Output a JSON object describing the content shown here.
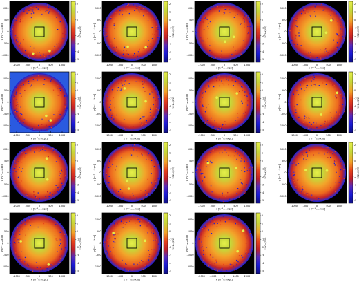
{
  "chart_data": {
    "type": "heatmap",
    "layout": {
      "rows": 4,
      "cols": 4,
      "panel_count": 15
    },
    "colorbar": {
      "label": "Log₁₀(ρ/ρ̄)",
      "tick_labels": [
        "2",
        "1",
        "0",
        "-1",
        "-2",
        "-3",
        "-4",
        "-5"
      ],
      "colors": [
        "#000000",
        "#1a1ad6",
        "#5a2ab8",
        "#c0202a",
        "#e8451c",
        "#f2a52a",
        "#c6d63a",
        "#e6f04a"
      ]
    },
    "panels": [
      {
        "xlabel": "x [h⁻¹ₘₑₛₕkpc]",
        "ylabel": "y [h⁻¹ₘₑₛₕkpc]",
        "xticks": [
          "-1000",
          "-500",
          "0",
          "500",
          "1000"
        ],
        "yticks": [
          "1000",
          "500",
          "0",
          "-500",
          "-1000"
        ],
        "background": "#000000"
      },
      {
        "xlabel": "x [h⁻¹ₘₑₛₕkpc]",
        "ylabel": "y [h⁻¹ₘₑₛₕkpc]",
        "xticks": [
          "-1000",
          "-500",
          "0",
          "500",
          "1000"
        ],
        "yticks": [
          "1000",
          "500",
          "0",
          "-500",
          "-1000"
        ],
        "background": "#000000"
      },
      {
        "xlabel": "x [h⁻¹ₘₑₛₕkpc]",
        "ylabel": "y [h⁻¹ₘₑₛₕkpc]",
        "xticks": [
          "-1000",
          "-500",
          "0",
          "500",
          "1000"
        ],
        "yticks": [
          "1000",
          "500",
          "0",
          "-500",
          "-1000"
        ],
        "background": "#000000"
      },
      {
        "xlabel": "x [h⁻¹ₘₑₛₕkpc]",
        "ylabel": "y [h⁻¹ₘₑₛₕkpc]",
        "xticks": [
          "-1000",
          "-500",
          "0",
          "500",
          "1000"
        ],
        "yticks": [
          "1000",
          "500",
          "0",
          "-500",
          "-1000"
        ],
        "background": "#000000"
      },
      {
        "xlabel": "x [h⁻¹ₘₑₛₕkpc]",
        "ylabel": "y [h⁻¹ₘₑₛₕkpc]",
        "xticks": [
          "-1000",
          "-500",
          "0",
          "500",
          "1000"
        ],
        "yticks": [
          "1000",
          "500",
          "0",
          "-500",
          "-1000"
        ],
        "background": "#2a5ae0"
      },
      {
        "xlabel": "x [h⁻¹ₘₑₛₕkpc]",
        "ylabel": "y [h⁻¹ₘₑₛₕkpc]",
        "xticks": [
          "-1000",
          "-500",
          "0",
          "500",
          "1000"
        ],
        "yticks": [
          "1000",
          "500",
          "0",
          "-500",
          "-1000"
        ],
        "background": "#000000"
      },
      {
        "xlabel": "x [h⁻¹ₘₑₛₕkpc]",
        "ylabel": "y [h⁻¹ₘₑₛₕkpc]",
        "xticks": [
          "-1000",
          "-500",
          "0",
          "500",
          "1000"
        ],
        "yticks": [
          "1000",
          "500",
          "0",
          "-500",
          "-1000"
        ],
        "background": "#000000"
      },
      {
        "xlabel": "x [h⁻¹ₘₑₛₕkpc]",
        "ylabel": "y [h⁻¹ₘₑₛₕkpc]",
        "xticks": [
          "-1000",
          "-500",
          "0",
          "500",
          "1000"
        ],
        "yticks": [
          "1000",
          "500",
          "0",
          "-500",
          "-1000"
        ],
        "background": "#000000"
      },
      {
        "xlabel": "x [h⁻¹ₘₑₛₕkpc]",
        "ylabel": "y [h⁻¹ₘₑₛₕkpc]",
        "xticks": [
          "-1000",
          "-500",
          "0",
          "500",
          "1000"
        ],
        "yticks": [
          "1000",
          "500",
          "0",
          "-500",
          "-1000"
        ],
        "background": "#000000"
      },
      {
        "xlabel": "x [h⁻¹ₘₑₛₕkpc]",
        "ylabel": "y [h⁻¹ₘₑₛₕkpc]",
        "xticks": [
          "-1000",
          "-500",
          "0",
          "500",
          "1000"
        ],
        "yticks": [
          "1000",
          "500",
          "0",
          "-500",
          "-1000"
        ],
        "background": "#000000"
      },
      {
        "xlabel": "x [h⁻¹ₘₑₛₕkpc]",
        "ylabel": "y [h⁻¹ₘₑₛₕkpc]",
        "xticks": [
          "-1000",
          "-500",
          "0",
          "500",
          "1000"
        ],
        "yticks": [
          "1000",
          "500",
          "0",
          "-500",
          "-1000"
        ],
        "background": "#000000"
      },
      {
        "xlabel": "x [h⁻¹ₘₑₛₕkpc]",
        "ylabel": "y [h⁻¹ₘₑₛₕkpc]",
        "xticks": [
          "-1000",
          "-500",
          "0",
          "500",
          "1000"
        ],
        "yticks": [
          "1000",
          "500",
          "0",
          "-500",
          "-1000"
        ],
        "background": "#000000"
      },
      {
        "xlabel": "x [h⁻¹ₘₑₛₕkpc]",
        "ylabel": "y [h⁻¹ₘₑₛₕkpc]",
        "xticks": [
          "-1000",
          "-500",
          "0",
          "500",
          "1000"
        ],
        "yticks": [
          "1000",
          "500",
          "0",
          "-500",
          "-1000"
        ],
        "background": "#000000"
      },
      {
        "xlabel": "x [h⁻¹ₘₑₛₕkpc]",
        "ylabel": "y [h⁻¹ₘₑₛₕkpc]",
        "xticks": [
          "-1000",
          "-500",
          "0",
          "500",
          "1000"
        ],
        "yticks": [
          "1000",
          "500",
          "0",
          "-500",
          "-1000"
        ],
        "background": "#000000"
      },
      {
        "xlabel": "x [h⁻¹ₘₑₛₕkpc]",
        "ylabel": "y [h⁻¹ₘₑₛₕkpc]",
        "xticks": [
          "-2000",
          "-1000",
          "0",
          "1000",
          "2000"
        ],
        "yticks": [
          "2000",
          "1000",
          "0",
          "-1000",
          "-2000"
        ],
        "background": "#000000"
      }
    ]
  }
}
